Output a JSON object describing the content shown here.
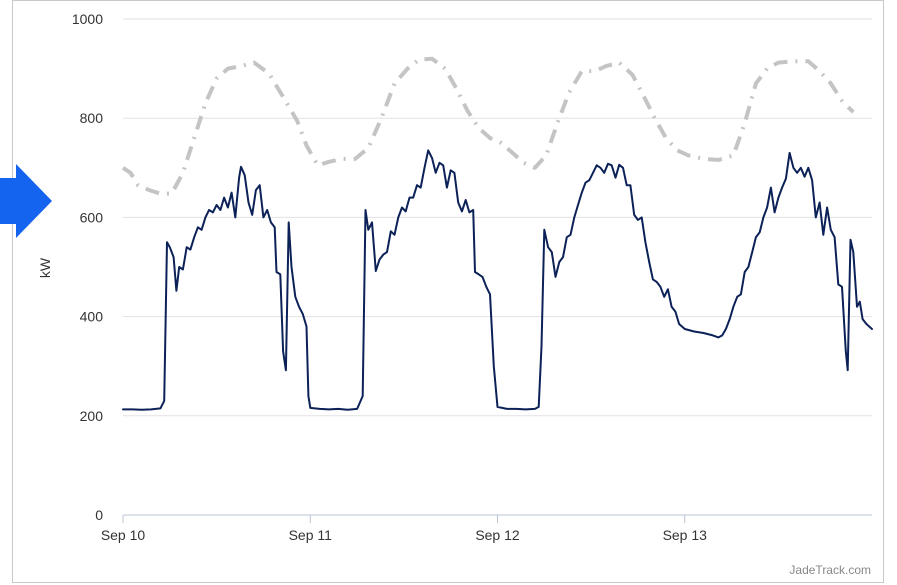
{
  "colors": {
    "actual": "#0b2157",
    "forecast": "#c4c4c4",
    "grid": "#e2e2e2",
    "accent_arrow": "#1464f0"
  },
  "arrow_icon": "arrow-right-icon",
  "credit": "JadeTrack.com",
  "chart_data": {
    "type": "line",
    "title": "",
    "xlabel": "",
    "ylabel": "kW",
    "xlim_days": [
      10,
      14
    ],
    "ylim": [
      0,
      1000
    ],
    "yticks": [
      0,
      200,
      400,
      600,
      800,
      1000
    ],
    "xticks": [
      {
        "day": 10,
        "label": "Sep 10"
      },
      {
        "day": 11,
        "label": "Sep 11"
      },
      {
        "day": 12,
        "label": "Sep 12"
      },
      {
        "day": 13,
        "label": "Sep 13"
      }
    ],
    "grid": "horizontal",
    "series": [
      {
        "key": "forecast",
        "style": "dash-dot",
        "points": [
          [
            10.0,
            700
          ],
          [
            10.04,
            690
          ],
          [
            10.08,
            665
          ],
          [
            10.14,
            655
          ],
          [
            10.2,
            648
          ],
          [
            10.26,
            648
          ],
          [
            10.32,
            690
          ],
          [
            10.38,
            760
          ],
          [
            10.44,
            830
          ],
          [
            10.5,
            880
          ],
          [
            10.56,
            900
          ],
          [
            10.63,
            905
          ],
          [
            10.7,
            912
          ],
          [
            10.78,
            890
          ],
          [
            10.86,
            840
          ],
          [
            10.93,
            795
          ],
          [
            10.98,
            745
          ],
          [
            11.04,
            705
          ],
          [
            11.1,
            712
          ],
          [
            11.17,
            718
          ],
          [
            11.24,
            718
          ],
          [
            11.31,
            740
          ],
          [
            11.38,
            800
          ],
          [
            11.45,
            870
          ],
          [
            11.52,
            900
          ],
          [
            11.58,
            918
          ],
          [
            11.65,
            920
          ],
          [
            11.72,
            900
          ],
          [
            11.78,
            860
          ],
          [
            11.84,
            815
          ],
          [
            11.9,
            780
          ],
          [
            11.96,
            760
          ],
          [
            12.02,
            750
          ],
          [
            12.08,
            730
          ],
          [
            12.14,
            710
          ],
          [
            12.2,
            700
          ],
          [
            12.26,
            725
          ],
          [
            12.32,
            790
          ],
          [
            12.38,
            850
          ],
          [
            12.45,
            895
          ],
          [
            12.52,
            895
          ],
          [
            12.58,
            905
          ],
          [
            12.65,
            912
          ],
          [
            12.72,
            888
          ],
          [
            12.78,
            845
          ],
          [
            12.84,
            800
          ],
          [
            12.9,
            760
          ],
          [
            12.96,
            735
          ],
          [
            13.02,
            725
          ],
          [
            13.1,
            718
          ],
          [
            13.18,
            716
          ],
          [
            13.26,
            725
          ],
          [
            13.32,
            790
          ],
          [
            13.38,
            870
          ],
          [
            13.44,
            900
          ],
          [
            13.5,
            912
          ],
          [
            13.58,
            915
          ],
          [
            13.66,
            915
          ],
          [
            13.72,
            895
          ],
          [
            13.78,
            870
          ],
          [
            13.84,
            835
          ],
          [
            13.9,
            812
          ]
        ]
      },
      {
        "key": "actual",
        "style": "solid",
        "points": [
          [
            10.0,
            213
          ],
          [
            10.05,
            213
          ],
          [
            10.1,
            212
          ],
          [
            10.15,
            213
          ],
          [
            10.2,
            215
          ],
          [
            10.22,
            230
          ],
          [
            10.235,
            550
          ],
          [
            10.25,
            540
          ],
          [
            10.27,
            520
          ],
          [
            10.285,
            452
          ],
          [
            10.3,
            500
          ],
          [
            10.32,
            495
          ],
          [
            10.34,
            540
          ],
          [
            10.36,
            535
          ],
          [
            10.38,
            560
          ],
          [
            10.4,
            580
          ],
          [
            10.42,
            575
          ],
          [
            10.44,
            600
          ],
          [
            10.46,
            615
          ],
          [
            10.48,
            610
          ],
          [
            10.5,
            625
          ],
          [
            10.52,
            615
          ],
          [
            10.54,
            640
          ],
          [
            10.56,
            620
          ],
          [
            10.58,
            650
          ],
          [
            10.6,
            600
          ],
          [
            10.62,
            680
          ],
          [
            10.63,
            702
          ],
          [
            10.65,
            685
          ],
          [
            10.67,
            630
          ],
          [
            10.69,
            605
          ],
          [
            10.71,
            655
          ],
          [
            10.73,
            665
          ],
          [
            10.75,
            600
          ],
          [
            10.77,
            615
          ],
          [
            10.79,
            590
          ],
          [
            10.81,
            580
          ],
          [
            10.82,
            490
          ],
          [
            10.84,
            485
          ],
          [
            10.855,
            330
          ],
          [
            10.87,
            292
          ],
          [
            10.885,
            590
          ],
          [
            10.9,
            500
          ],
          [
            10.92,
            440
          ],
          [
            10.94,
            420
          ],
          [
            10.96,
            405
          ],
          [
            10.98,
            380
          ],
          [
            10.99,
            240
          ],
          [
            11.0,
            216
          ],
          [
            11.05,
            214
          ],
          [
            11.1,
            213
          ],
          [
            11.15,
            214
          ],
          [
            11.2,
            212
          ],
          [
            11.25,
            214
          ],
          [
            11.26,
            222
          ],
          [
            11.28,
            240
          ],
          [
            11.295,
            615
          ],
          [
            11.31,
            575
          ],
          [
            11.33,
            590
          ],
          [
            11.35,
            492
          ],
          [
            11.37,
            515
          ],
          [
            11.39,
            525
          ],
          [
            11.41,
            530
          ],
          [
            11.43,
            572
          ],
          [
            11.45,
            565
          ],
          [
            11.47,
            600
          ],
          [
            11.49,
            620
          ],
          [
            11.51,
            612
          ],
          [
            11.53,
            640
          ],
          [
            11.55,
            640
          ],
          [
            11.57,
            665
          ],
          [
            11.59,
            660
          ],
          [
            11.61,
            700
          ],
          [
            11.63,
            735
          ],
          [
            11.65,
            720
          ],
          [
            11.67,
            690
          ],
          [
            11.69,
            710
          ],
          [
            11.71,
            705
          ],
          [
            11.73,
            660
          ],
          [
            11.75,
            695
          ],
          [
            11.77,
            690
          ],
          [
            11.79,
            630
          ],
          [
            11.81,
            612
          ],
          [
            11.83,
            635
          ],
          [
            11.85,
            610
          ],
          [
            11.87,
            615
          ],
          [
            11.88,
            490
          ],
          [
            11.9,
            485
          ],
          [
            11.92,
            480
          ],
          [
            11.94,
            460
          ],
          [
            11.96,
            445
          ],
          [
            11.98,
            300
          ],
          [
            12.0,
            218
          ],
          [
            12.05,
            214
          ],
          [
            12.1,
            214
          ],
          [
            12.15,
            213
          ],
          [
            12.2,
            214
          ],
          [
            12.22,
            218
          ],
          [
            12.235,
            340
          ],
          [
            12.25,
            575
          ],
          [
            12.27,
            540
          ],
          [
            12.29,
            530
          ],
          [
            12.31,
            480
          ],
          [
            12.33,
            510
          ],
          [
            12.35,
            520
          ],
          [
            12.37,
            560
          ],
          [
            12.39,
            565
          ],
          [
            12.41,
            600
          ],
          [
            12.43,
            625
          ],
          [
            12.45,
            650
          ],
          [
            12.47,
            670
          ],
          [
            12.49,
            675
          ],
          [
            12.51,
            690
          ],
          [
            12.53,
            705
          ],
          [
            12.55,
            700
          ],
          [
            12.57,
            690
          ],
          [
            12.59,
            708
          ],
          [
            12.61,
            705
          ],
          [
            12.63,
            680
          ],
          [
            12.65,
            706
          ],
          [
            12.67,
            700
          ],
          [
            12.69,
            665
          ],
          [
            12.71,
            665
          ],
          [
            12.73,
            605
          ],
          [
            12.75,
            595
          ],
          [
            12.77,
            600
          ],
          [
            12.79,
            550
          ],
          [
            12.81,
            510
          ],
          [
            12.83,
            475
          ],
          [
            12.85,
            470
          ],
          [
            12.87,
            460
          ],
          [
            12.89,
            440
          ],
          [
            12.91,
            455
          ],
          [
            12.93,
            420
          ],
          [
            12.95,
            410
          ],
          [
            12.97,
            385
          ],
          [
            13.0,
            375
          ],
          [
            13.05,
            370
          ],
          [
            13.1,
            367
          ],
          [
            13.15,
            362
          ],
          [
            13.18,
            358
          ],
          [
            13.2,
            362
          ],
          [
            13.22,
            375
          ],
          [
            13.24,
            395
          ],
          [
            13.26,
            420
          ],
          [
            13.28,
            440
          ],
          [
            13.3,
            445
          ],
          [
            13.32,
            490
          ],
          [
            13.34,
            500
          ],
          [
            13.36,
            530
          ],
          [
            13.38,
            560
          ],
          [
            13.4,
            570
          ],
          [
            13.42,
            600
          ],
          [
            13.44,
            620
          ],
          [
            13.46,
            660
          ],
          [
            13.48,
            610
          ],
          [
            13.5,
            640
          ],
          [
            13.52,
            660
          ],
          [
            13.54,
            678
          ],
          [
            13.56,
            730
          ],
          [
            13.58,
            700
          ],
          [
            13.6,
            690
          ],
          [
            13.62,
            700
          ],
          [
            13.64,
            682
          ],
          [
            13.66,
            700
          ],
          [
            13.68,
            675
          ],
          [
            13.7,
            600
          ],
          [
            13.72,
            630
          ],
          [
            13.74,
            565
          ],
          [
            13.76,
            620
          ],
          [
            13.78,
            575
          ],
          [
            13.8,
            560
          ],
          [
            13.82,
            465
          ],
          [
            13.84,
            460
          ],
          [
            13.86,
            330
          ],
          [
            13.87,
            292
          ],
          [
            13.885,
            555
          ],
          [
            13.9,
            530
          ],
          [
            13.92,
            420
          ],
          [
            13.935,
            430
          ],
          [
            13.95,
            395
          ],
          [
            13.97,
            385
          ],
          [
            14.0,
            375
          ]
        ]
      }
    ]
  }
}
